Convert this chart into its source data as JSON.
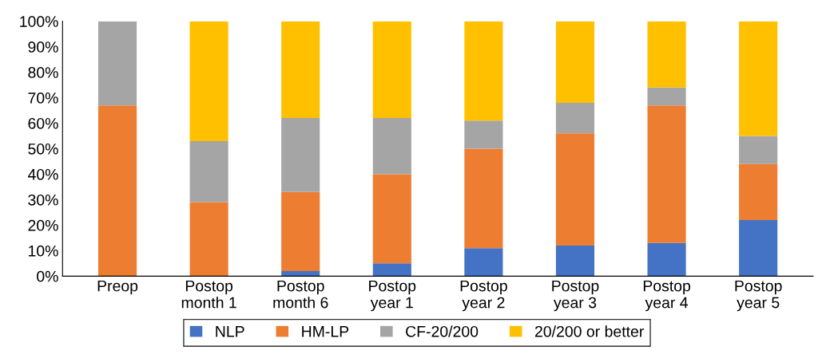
{
  "chart_data": {
    "type": "bar",
    "stacked": true,
    "categories": [
      "Preop",
      "Postop\nmonth 1",
      "Postop\nmonth 6",
      "Postop\nyear 1",
      "Postop\nyear 2",
      "Postop\nyear 3",
      "Postop\nyear 4",
      "Postop\nyear 5"
    ],
    "series": [
      {
        "name": "NLP",
        "color": "#4472c4",
        "values": [
          0,
          0,
          2,
          5,
          11,
          12,
          13,
          22
        ]
      },
      {
        "name": "HM-LP",
        "color": "#ed7d31",
        "values": [
          67,
          29,
          31,
          35,
          39,
          44,
          54,
          22
        ]
      },
      {
        "name": "CF-20/200",
        "color": "#a5a5a5",
        "values": [
          33,
          24,
          29,
          22,
          11,
          12,
          7,
          11
        ]
      },
      {
        "name": "20/200 or better",
        "color": "#ffc000",
        "values": [
          0,
          47,
          38,
          38,
          39,
          32,
          26,
          45
        ]
      }
    ],
    "ylim": [
      0,
      100
    ],
    "yticks": [
      {
        "value": 0,
        "label": "0%"
      },
      {
        "value": 10,
        "label": "10%"
      },
      {
        "value": 20,
        "label": "20%"
      },
      {
        "value": 30,
        "label": "30%"
      },
      {
        "value": 40,
        "label": "40%"
      },
      {
        "value": 50,
        "label": "50%"
      },
      {
        "value": 60,
        "label": "60%"
      },
      {
        "value": 70,
        "label": "70%"
      },
      {
        "value": 80,
        "label": "80%"
      },
      {
        "value": 90,
        "label": "90%"
      },
      {
        "value": 100,
        "label": "100%"
      }
    ],
    "grid": false,
    "legend": "bottom"
  }
}
